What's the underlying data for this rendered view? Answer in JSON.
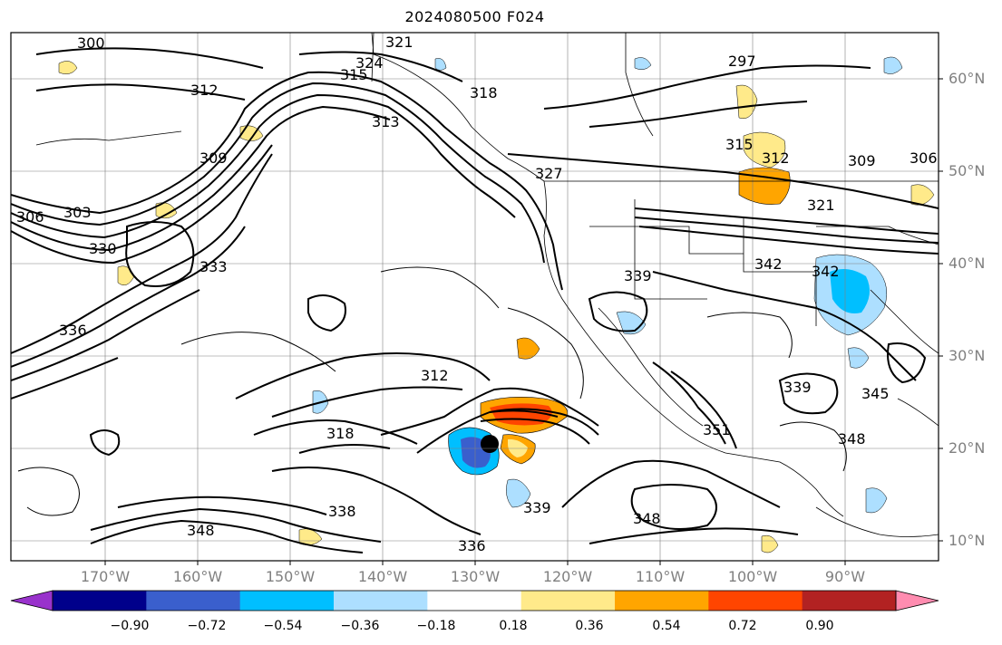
{
  "title": "2024080500 F024",
  "lat_labels": [
    "60°N",
    "50°N",
    "40°N",
    "30°N",
    "20°N",
    "10°N"
  ],
  "lon_labels": [
    "170°W",
    "160°W",
    "150°W",
    "140°W",
    "130°W",
    "120°W",
    "110°W",
    "100°W",
    "90°W"
  ],
  "colorbar": {
    "tick_labels": [
      "−0.90",
      "−0.72",
      "−0.54",
      "−0.36",
      "−0.18",
      "0.18",
      "0.36",
      "0.54",
      "0.72",
      "0.90"
    ],
    "colors": [
      "#9932CC",
      "#00008B",
      "#3A5FCD",
      "#00BFFF",
      "#ADDFFF",
      "#FFFFFF",
      "#FFEA8A",
      "#FFA500",
      "#FF4500",
      "#B22222",
      "#FF8CB0"
    ]
  },
  "contour_labels": [
    "300",
    "297",
    "321",
    "324",
    "312",
    "315",
    "318",
    "303",
    "309",
    "313",
    "306",
    "330",
    "333",
    "336",
    "339",
    "327",
    "342",
    "345",
    "348",
    "339",
    "336",
    "338",
    "351",
    "342",
    "312",
    "315",
    "309",
    "306",
    "321"
  ]
}
